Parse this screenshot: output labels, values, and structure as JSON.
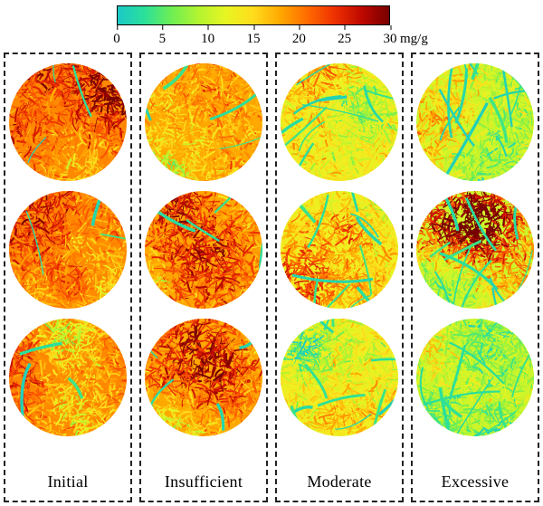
{
  "chart_data": {
    "type": "heatmap",
    "title": "",
    "colorbar": {
      "min": 0,
      "max": 30,
      "ticks": [
        "0",
        "5",
        "10",
        "15",
        "20",
        "25",
        "30"
      ],
      "unit": "mg/g",
      "colormap": "jet",
      "colormap_stops": [
        "#1BC8C8",
        "#2BE09A",
        "#6FEE52",
        "#B4F430",
        "#E8F522",
        "#FFDC1C",
        "#FFA800",
        "#FF6A00",
        "#EE3000",
        "#BE0800",
        "#760000"
      ]
    },
    "columns": [
      {
        "label": "Initial",
        "replicates": 3,
        "approx_mean_mg_per_g": 19.5
      },
      {
        "label": "Insufficient",
        "replicates": 3,
        "approx_mean_mg_per_g": 18
      },
      {
        "label": "Moderate",
        "replicates": 3,
        "approx_mean_mg_per_g": 13
      },
      {
        "label": "Excessive",
        "replicates": 3,
        "approx_mean_mg_per_g": 10.5
      }
    ]
  }
}
